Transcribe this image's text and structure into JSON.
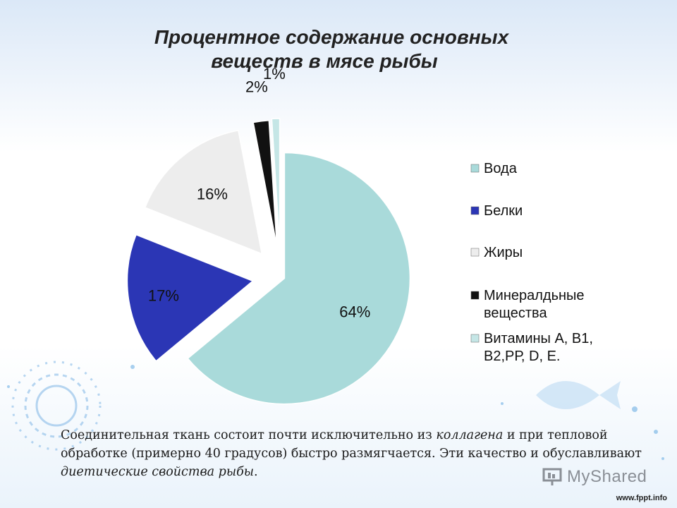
{
  "chart_data": {
    "type": "pie",
    "title_lines": [
      "Процентное  содержание  основных",
      "веществ  в мясе  рыбы"
    ],
    "slices": [
      {
        "name": "Вода",
        "value": 64,
        "label": "64%",
        "color": "#a9dada"
      },
      {
        "name": "Белки",
        "value": 17,
        "label": "17%",
        "color": "#2b36b5"
      },
      {
        "name": "Жиры",
        "value": 16,
        "label": "16%",
        "color": "#ededed"
      },
      {
        "name": "Минералдьные вещества",
        "value": 2,
        "label": "2%",
        "color": "#111111"
      },
      {
        "name": "Витамины А, В1, В2,РР, D, Е.",
        "value": 1,
        "label": "1%",
        "color": "#c5e6e6"
      }
    ],
    "legend": [
      {
        "lines": [
          "Вода"
        ],
        "color": "#a9dada"
      },
      {
        "lines": [
          "Белки"
        ],
        "color": "#2b36b5"
      },
      {
        "lines": [
          "Жиры"
        ],
        "color": "#ededed"
      },
      {
        "lines": [
          "Минералдьные",
          "вещества"
        ],
        "color": "#111111"
      },
      {
        "lines": [
          "Витамины А, В1,",
          "В2,РР, D, Е."
        ],
        "color": "#c5e6e6"
      }
    ],
    "legend_placement": "right",
    "exploded": true
  },
  "caption": {
    "part1": "Соединительная ткань состоит почти исключительно из ",
    "italic1": "коллагена",
    "part2": "  и при тепловой обработке (примерно 40 градусов) быстро размягчается. Эти качество и обуславливают ",
    "italic2": "диетические свойства рыбы",
    "part3": "."
  },
  "watermark": {
    "logo": "MyShared",
    "site": "www.fppt.info"
  }
}
